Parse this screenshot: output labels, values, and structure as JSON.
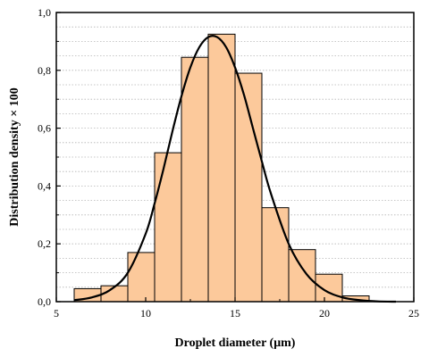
{
  "chart_data": {
    "type": "bar",
    "title": "",
    "xlabel": "Droplet diameter (μm)",
    "ylabel": "Distribution density × 100",
    "xlim": [
      5,
      25
    ],
    "ylim": [
      0,
      1.0
    ],
    "x_ticks": [
      "5",
      "10",
      "15",
      "20",
      "25"
    ],
    "y_ticks": [
      "0,0",
      "0,2",
      "0,4",
      "0,6",
      "0,8",
      "1,0"
    ],
    "grid": "horizontal dotted",
    "legend": "none",
    "bar_color": "#fcc99b",
    "bar_edge_color": "#000000",
    "curve_color": "#000000",
    "bar_width": 1.5,
    "series": [
      {
        "type": "bar",
        "x": [
          6.75,
          8.25,
          9.75,
          11.25,
          12.75,
          14.25,
          15.75,
          17.25,
          18.75,
          20.25,
          21.75
        ],
        "values": [
          0.045,
          0.055,
          0.17,
          0.515,
          0.845,
          0.925,
          0.79,
          0.325,
          0.18,
          0.095,
          0.02
        ]
      },
      {
        "type": "line",
        "x": [
          6,
          7,
          8,
          9,
          10,
          10.5,
          11,
          11.5,
          12,
          12.5,
          13,
          13.5,
          14,
          14.5,
          15,
          15.5,
          16,
          16.5,
          17,
          18,
          19,
          20,
          21,
          22,
          23,
          24
        ],
        "values": [
          0.005,
          0.015,
          0.04,
          0.1,
          0.235,
          0.34,
          0.46,
          0.59,
          0.71,
          0.81,
          0.88,
          0.915,
          0.915,
          0.88,
          0.81,
          0.715,
          0.6,
          0.485,
          0.375,
          0.2,
          0.095,
          0.04,
          0.015,
          0.005,
          0.001,
          0.0
        ]
      }
    ]
  }
}
